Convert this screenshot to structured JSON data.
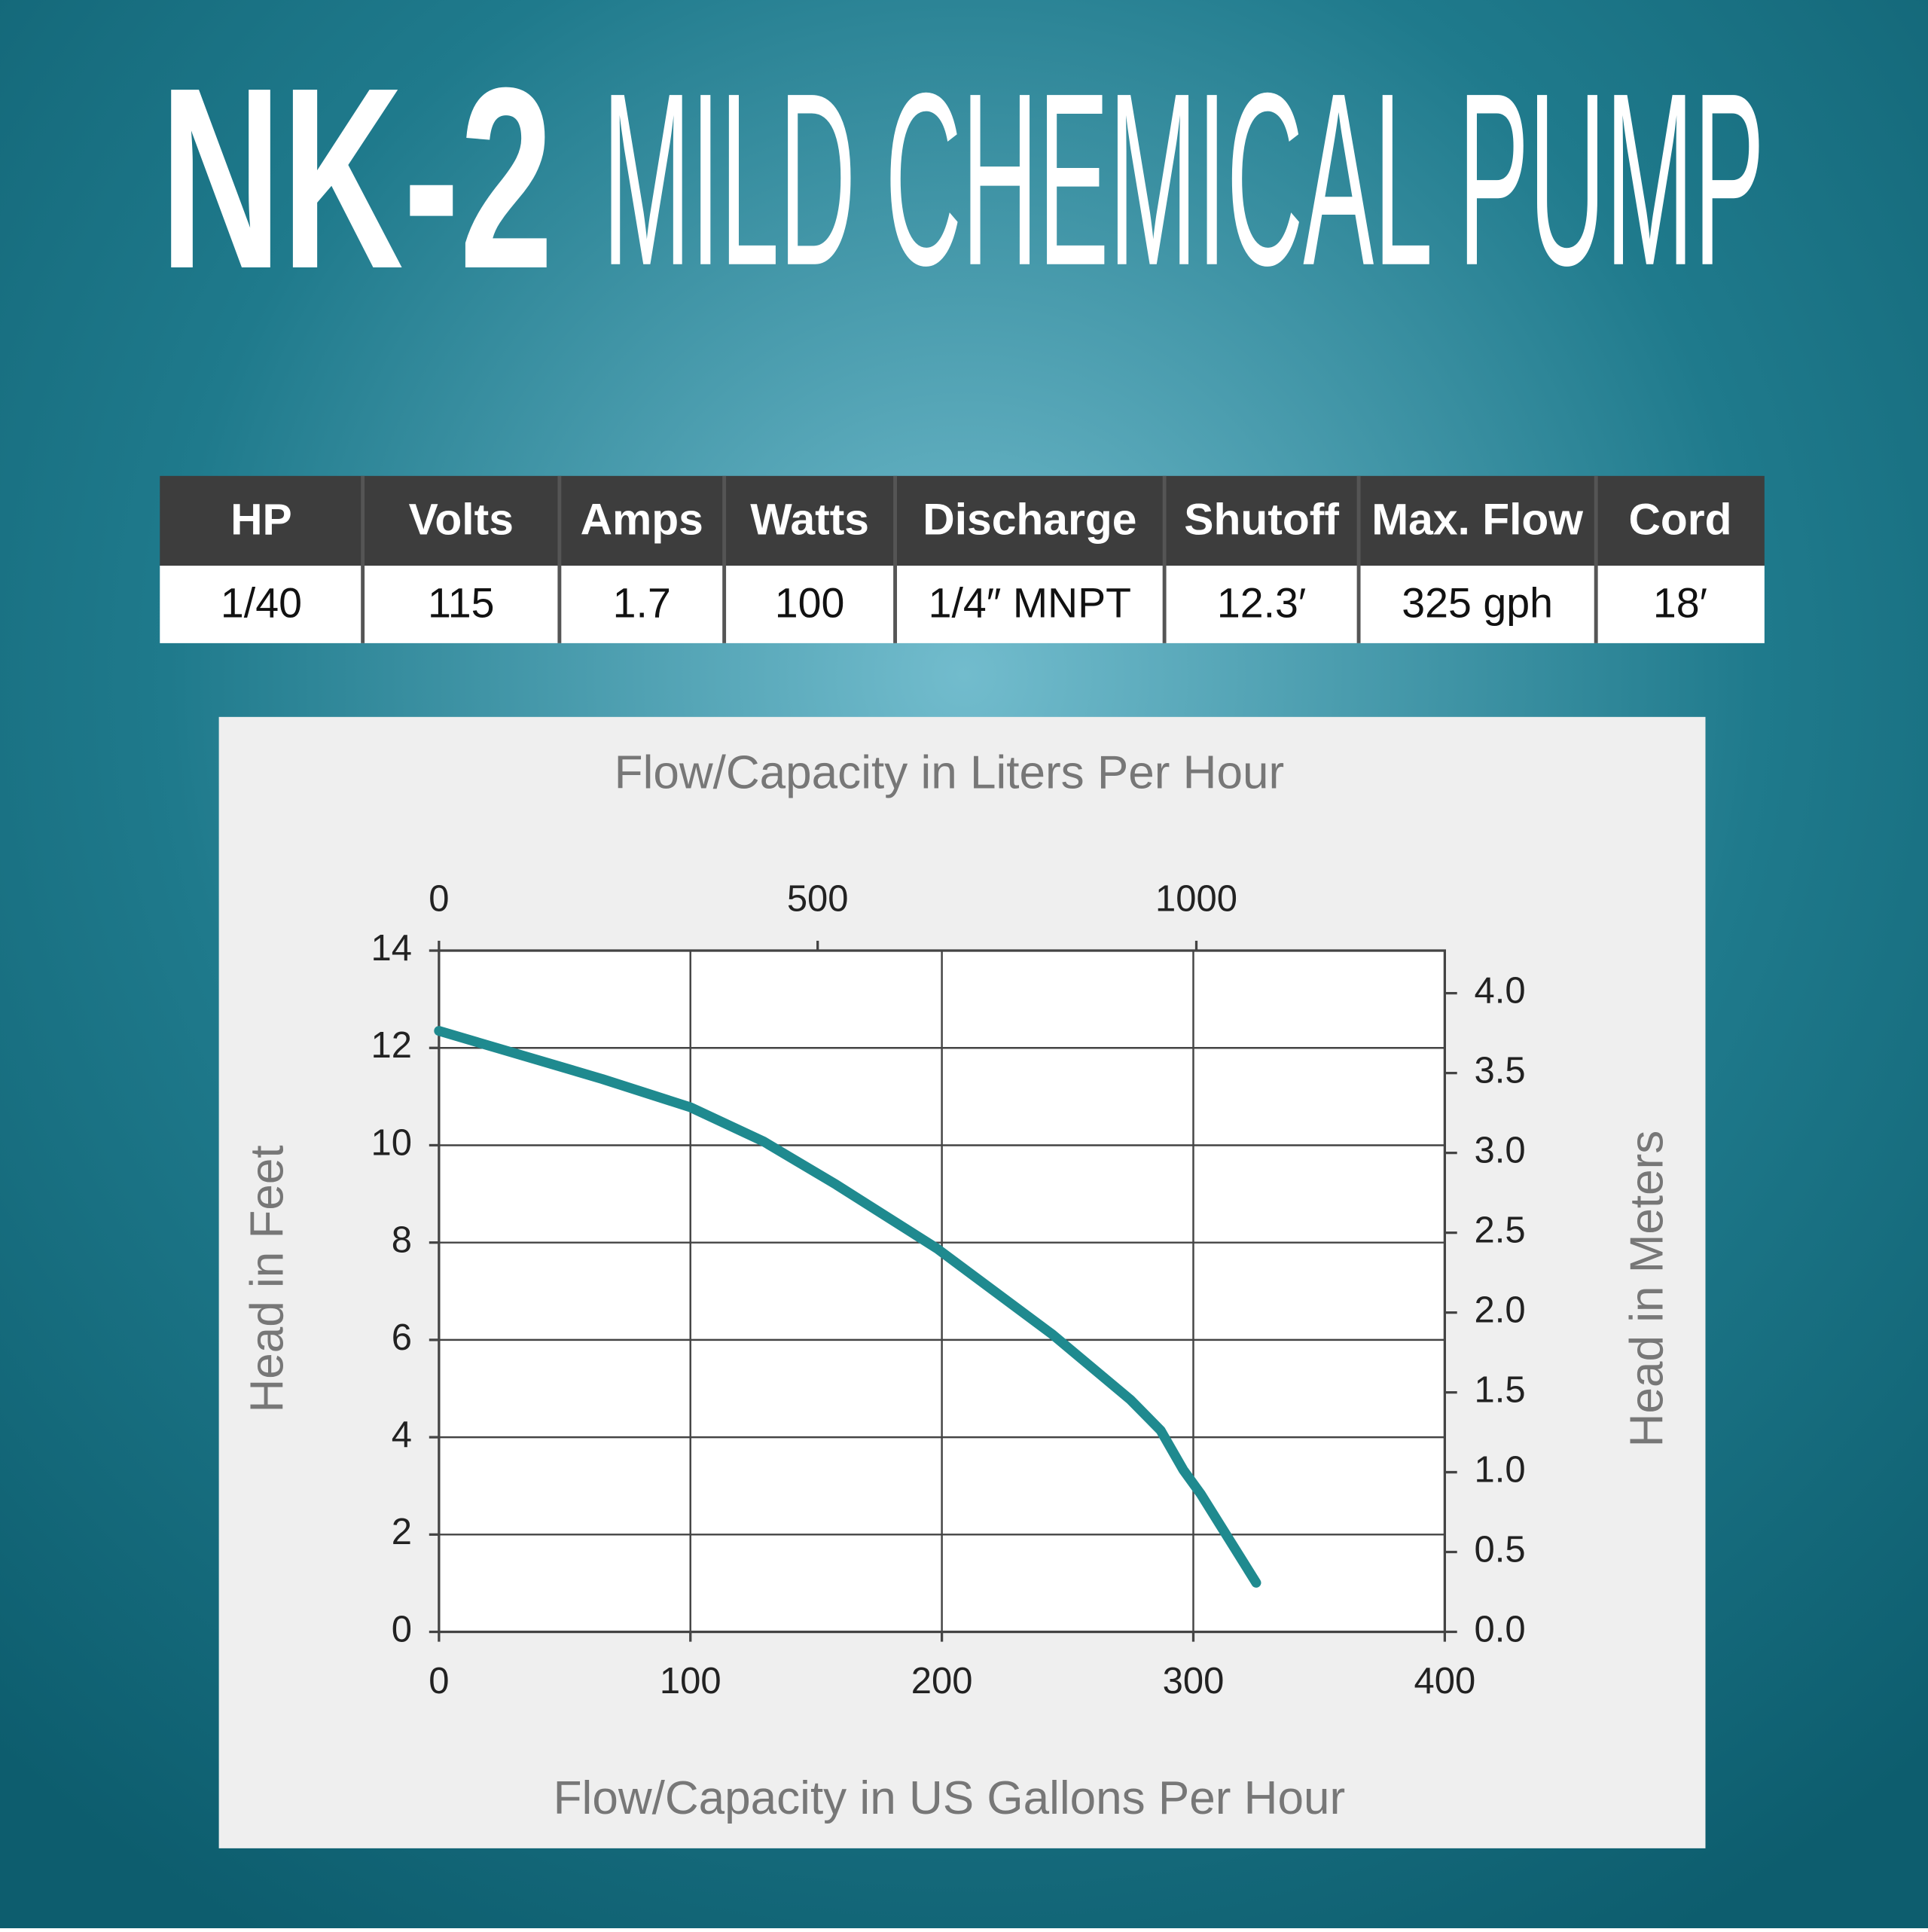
{
  "header": {
    "model": "NK-2",
    "name": "MILD CHEMICAL PUMP"
  },
  "table": {
    "columns": [
      "HP",
      "Volts",
      "Amps",
      "Watts",
      "Discharge",
      "Shutoff",
      "Max. Flow",
      "Cord"
    ],
    "rows": [
      [
        "1/40",
        "115",
        "1.7",
        "100",
        "1/4″ MNPT",
        "12.3′",
        "325 gph",
        "18′"
      ]
    ]
  },
  "chart_data": {
    "type": "line",
    "x2label": "Flow/Capacity in Liters Per Hour",
    "xlabel": "Flow/Capacity in US Gallons Per Hour",
    "ylabel": "Head in Feet",
    "y2label": "Head in Meters",
    "x": [
      0,
      65,
      100,
      129,
      158,
      198,
      244,
      275,
      287,
      296,
      303,
      325
    ],
    "values": [
      12.35,
      11.36,
      10.78,
      10.08,
      9.19,
      7.88,
      6.11,
      4.77,
      4.14,
      3.33,
      2.83,
      1.01
    ],
    "color": "#1f8a8f",
    "xlim": [
      0,
      400
    ],
    "xticks": [
      0,
      100,
      200,
      300,
      400
    ],
    "ylim": [
      0,
      14
    ],
    "yticks": [
      0,
      2,
      4,
      6,
      8,
      10,
      12,
      14
    ],
    "x2lim": [
      0,
      1328
    ],
    "x2ticks": [
      0,
      500,
      1000
    ],
    "y2lim": [
      0,
      4.267
    ],
    "y2ticks": [
      {
        "value": 0,
        "label": "0.0"
      },
      0.5,
      {
        "value": 1,
        "label": "1.0"
      },
      1.5,
      {
        "value": 2,
        "label": "2.0"
      },
      2.5,
      {
        "value": 3,
        "label": "3.0"
      },
      3.5,
      {
        "value": 4,
        "label": "4.0"
      }
    ],
    "grid": true
  }
}
